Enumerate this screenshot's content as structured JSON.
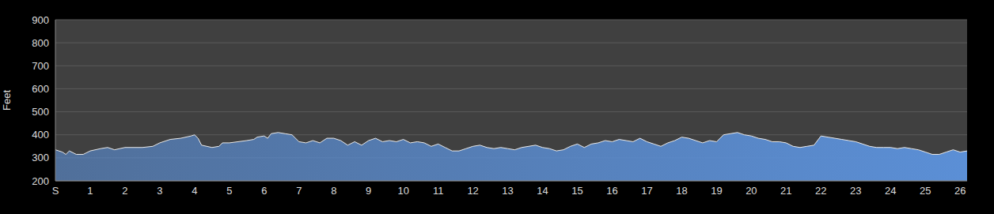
{
  "chart_data": {
    "type": "area",
    "y_label": "Feet",
    "color": "#5b8fd6",
    "grid": true,
    "xlim": [
      0,
      26.2
    ],
    "ylim": [
      200,
      900
    ],
    "xticks": [
      {
        "value": 0,
        "label": "S"
      },
      1,
      2,
      3,
      4,
      5,
      6,
      7,
      8,
      9,
      10,
      11,
      12,
      13,
      14,
      15,
      16,
      17,
      18,
      19,
      20,
      21,
      22,
      23,
      24,
      25,
      26
    ],
    "yticks": [
      200,
      300,
      400,
      500,
      600,
      700,
      800,
      900
    ],
    "x": [
      0,
      0.2,
      0.3,
      0.4,
      0.6,
      0.8,
      1,
      1.3,
      1.5,
      1.7,
      2,
      2.5,
      2.8,
      3,
      3.3,
      3.6,
      3.9,
      4,
      4.1,
      4.2,
      4.5,
      4.7,
      4.8,
      5,
      5.5,
      5.7,
      5.8,
      6,
      6.1,
      6.2,
      6.4,
      6.6,
      6.8,
      7,
      7.2,
      7.4,
      7.6,
      7.8,
      8,
      8.2,
      8.4,
      8.6,
      8.8,
      9,
      9.2,
      9.4,
      9.6,
      9.8,
      10,
      10.2,
      10.4,
      10.6,
      10.8,
      11,
      11.2,
      11.4,
      11.6,
      11.8,
      12,
      12.2,
      12.4,
      12.6,
      12.8,
      13,
      13.2,
      13.4,
      13.6,
      13.8,
      14,
      14.2,
      14.4,
      14.6,
      14.8,
      15,
      15.2,
      15.4,
      15.6,
      15.8,
      16,
      16.2,
      16.4,
      16.6,
      16.8,
      17,
      17.2,
      17.4,
      17.6,
      17.8,
      18,
      18.2,
      18.4,
      18.6,
      18.8,
      19,
      19.2,
      19.4,
      19.6,
      19.8,
      20,
      20.2,
      20.4,
      20.6,
      20.8,
      21,
      21.2,
      21.4,
      21.6,
      21.8,
      22,
      22.2,
      22.4,
      22.6,
      22.8,
      23,
      23.2,
      23.4,
      23.6,
      23.8,
      24,
      24.2,
      24.4,
      24.6,
      24.8,
      25,
      25.2,
      25.4,
      25.6,
      25.8,
      26,
      26.2
    ],
    "values": [
      335,
      325,
      315,
      330,
      315,
      315,
      330,
      340,
      345,
      335,
      345,
      345,
      350,
      365,
      380,
      385,
      395,
      400,
      385,
      355,
      345,
      350,
      365,
      365,
      375,
      380,
      390,
      395,
      385,
      405,
      410,
      405,
      400,
      370,
      365,
      375,
      365,
      385,
      385,
      375,
      355,
      370,
      355,
      375,
      385,
      370,
      375,
      370,
      380,
      365,
      370,
      365,
      350,
      360,
      345,
      330,
      330,
      340,
      350,
      355,
      345,
      340,
      345,
      340,
      335,
      345,
      350,
      355,
      345,
      340,
      330,
      335,
      350,
      360,
      345,
      360,
      365,
      375,
      370,
      380,
      375,
      370,
      385,
      370,
      360,
      350,
      365,
      375,
      390,
      385,
      375,
      365,
      375,
      370,
      400,
      405,
      410,
      400,
      395,
      385,
      380,
      370,
      370,
      365,
      350,
      345,
      350,
      355,
      395,
      390,
      385,
      380,
      375,
      370,
      360,
      350,
      345,
      345,
      345,
      340,
      345,
      340,
      335,
      325,
      315,
      315,
      325,
      335,
      325,
      330
    ]
  }
}
